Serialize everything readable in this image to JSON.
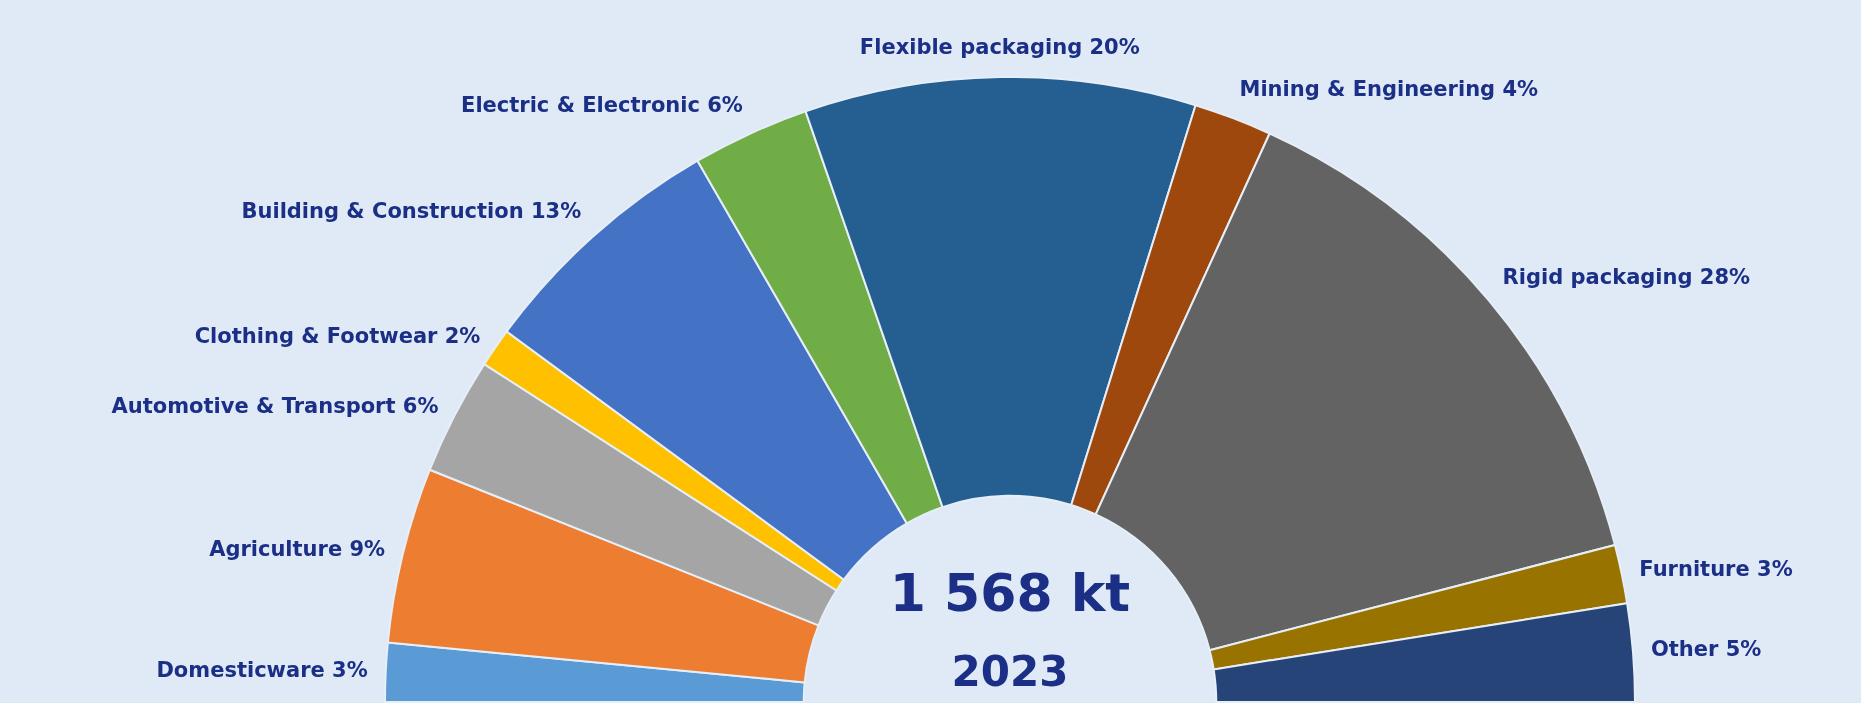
{
  "chart_data": {
    "type": "donut",
    "categories": [
      "Domesticware",
      "Agriculture",
      "Automotive & Transport",
      "Clothing & Footwear",
      "Building & Construction",
      "Electric & Electronic",
      "Flexible packaging",
      "Mining & Engineering",
      "Rigid packaging",
      "Furniture",
      "Other"
    ],
    "values": [
      3,
      9,
      6,
      2,
      13,
      6,
      20,
      4,
      28,
      3,
      5
    ],
    "value_labels": [
      "3%",
      "9%",
      "6%",
      "2%",
      "13%",
      "6%",
      "20%",
      "4%",
      "28%",
      "3%",
      "5%"
    ],
    "colors": [
      "#5b9bd5",
      "#ed7d31",
      "#a5a5a5",
      "#ffc000",
      "#4472c4",
      "#70ad47",
      "#255e91",
      "#9e480e",
      "#636363",
      "#997300",
      "#264478"
    ],
    "annotations": [
      "1 568 kt",
      "2023"
    ],
    "legend": false
  }
}
